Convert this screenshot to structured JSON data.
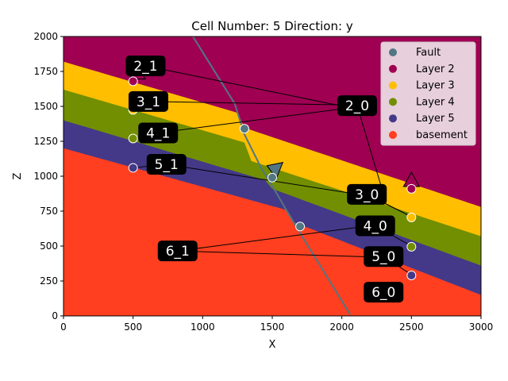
{
  "chart_data": {
    "type": "scatter",
    "title": "Cell Number: 5 Direction: y",
    "xlabel": "X",
    "ylabel": "Z",
    "xlim": [
      0,
      3000
    ],
    "ylim": [
      0,
      2000
    ],
    "xticks": [
      0,
      500,
      1000,
      1500,
      2000,
      2500,
      3000
    ],
    "yticks": [
      0,
      250,
      500,
      750,
      1000,
      1250,
      1500,
      1750,
      2000
    ],
    "grid": false,
    "legend_position": "top-right",
    "layer_colors": {
      "Fault": "#527682",
      "Layer 2": "#9f0052",
      "Layer 3": "#ffbe00",
      "Layer 4": "#728f02",
      "Layer 5": "#443988",
      "basement": "#ff3f20"
    },
    "legend": [
      {
        "name": "Fault",
        "color": "#527682"
      },
      {
        "name": "Layer 2",
        "color": "#9f0052"
      },
      {
        "name": "Layer 3",
        "color": "#ffbe00"
      },
      {
        "name": "Layer 4",
        "color": "#728f02"
      },
      {
        "name": "Layer 5",
        "color": "#443988"
      },
      {
        "name": "basement",
        "color": "#ff3f20"
      }
    ],
    "boundaries": [
      {
        "below": "Layer 2",
        "above_left": [
          [
            0,
            1820
          ],
          [
            1230,
            1460
          ]
        ],
        "above_right": [
          [
            1500,
            1280
          ],
          [
            3000,
            780
          ]
        ]
      },
      {
        "below": "Layer 3",
        "above_left": [
          [
            0,
            1620
          ],
          [
            1270,
            1250
          ]
        ],
        "above_right": [
          [
            1500,
            1060
          ],
          [
            3000,
            570
          ]
        ]
      },
      {
        "below": "Layer 4",
        "above_left": [
          [
            0,
            1400
          ],
          [
            1350,
            1000
          ]
        ],
        "above_right": [
          [
            1500,
            910
          ],
          [
            3000,
            360
          ]
        ]
      },
      {
        "below": "Layer 5",
        "above_left": [
          [
            0,
            1200
          ],
          [
            1450,
            800
          ]
        ],
        "above_right": [
          [
            1500,
            730
          ],
          [
            3000,
            150
          ]
        ]
      }
    ],
    "fault_line": [
      [
        930,
        2000
      ],
      [
        1230,
        1520
      ],
      [
        1300,
        1300
      ],
      [
        1420,
        1060
      ],
      [
        1530,
        880
      ],
      [
        1600,
        760
      ],
      [
        1720,
        560
      ],
      [
        1850,
        350
      ],
      [
        2060,
        10
      ]
    ],
    "series": [
      {
        "name": "Fault",
        "color": "#527682",
        "points": [
          [
            1300,
            1340
          ],
          [
            1500,
            990
          ],
          [
            1700,
            640
          ]
        ]
      },
      {
        "name": "Layer 2",
        "color": "#9f0052",
        "points": [
          [
            500,
            1680
          ],
          [
            2500,
            910
          ]
        ]
      },
      {
        "name": "Layer 3",
        "color": "#ffbe00",
        "points": [
          [
            500,
            1475
          ],
          [
            2500,
            705
          ]
        ]
      },
      {
        "name": "Layer 4",
        "color": "#728f02",
        "points": [
          [
            500,
            1270
          ],
          [
            2500,
            495
          ]
        ]
      },
      {
        "name": "Layer 5",
        "color": "#443988",
        "points": [
          [
            500,
            1060
          ],
          [
            2500,
            290
          ]
        ]
      }
    ],
    "orientations": [
      {
        "x": 530,
        "y": 1730,
        "color": "#9f0052",
        "direction": "up"
      },
      {
        "x": 2500,
        "y": 960,
        "color": "#9f0052",
        "direction": "up"
      },
      {
        "x": 1530,
        "y": 1030,
        "color": "#527682",
        "direction": "down"
      }
    ],
    "annotations": [
      {
        "label": "2_1",
        "x": 590,
        "y": 1790,
        "targets": [
          [
            500,
            1680
          ],
          [
            2060,
            1490
          ]
        ]
      },
      {
        "label": "3_1",
        "x": 610,
        "y": 1535,
        "targets": [
          [
            500,
            1475
          ],
          [
            2060,
            1510
          ]
        ]
      },
      {
        "label": "4_1",
        "x": 680,
        "y": 1310,
        "targets": [
          [
            500,
            1270
          ],
          [
            2060,
            1490
          ]
        ]
      },
      {
        "label": "5_1",
        "x": 740,
        "y": 1085,
        "targets": [
          [
            500,
            1060
          ],
          [
            2120,
            870
          ]
        ]
      },
      {
        "label": "6_1",
        "x": 820,
        "y": 465,
        "targets": [
          [
            2160,
            640
          ],
          [
            2290,
            420
          ]
        ]
      },
      {
        "label": "2_0",
        "x": 2110,
        "y": 1505,
        "targets": [
          [
            2300,
            870
          ]
        ]
      },
      {
        "label": "3_0",
        "x": 2180,
        "y": 870,
        "targets": [
          [
            2500,
            710
          ],
          [
            2500,
            710
          ]
        ]
      },
      {
        "label": "4_0",
        "x": 2240,
        "y": 645,
        "targets": [
          [
            2500,
            500
          ]
        ]
      },
      {
        "label": "5_0",
        "x": 2300,
        "y": 425,
        "targets": [
          [
            2500,
            295
          ]
        ]
      },
      {
        "label": "6_0",
        "x": 2300,
        "y": 170,
        "targets": []
      }
    ]
  }
}
